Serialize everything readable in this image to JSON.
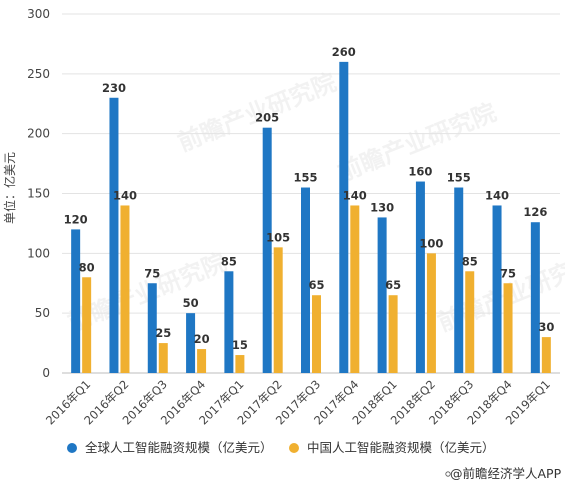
{
  "chart_data": {
    "type": "bar",
    "categories": [
      "2016年Q1",
      "2016年Q2",
      "2016年Q3",
      "2016年Q4",
      "2017年Q1",
      "2017年Q2",
      "2017年Q3",
      "2017年Q4",
      "2018年Q1",
      "2018年Q2",
      "2018年Q3",
      "2018年Q4",
      "2019年Q1"
    ],
    "series": [
      {
        "name": "全球人工智能融资规模（亿美元）",
        "color": "#1f77c4",
        "values": [
          120,
          230,
          75,
          50,
          85,
          205,
          155,
          260,
          130,
          160,
          155,
          140,
          126
        ]
      },
      {
        "name": "中国人工智能融资规模（亿美元）",
        "color": "#f0b030",
        "values": [
          80,
          140,
          25,
          20,
          15,
          105,
          65,
          140,
          65,
          100,
          85,
          75,
          30
        ]
      }
    ],
    "ylabel": "单位：亿美元",
    "xlabel": "",
    "ylim": [
      0,
      300
    ],
    "yticks": [
      0,
      50,
      100,
      150,
      200,
      250,
      300
    ],
    "grid": true,
    "legend_position": "bottom"
  },
  "source": "@前瞻经济学人APP",
  "watermark": "前瞻产业研究院"
}
